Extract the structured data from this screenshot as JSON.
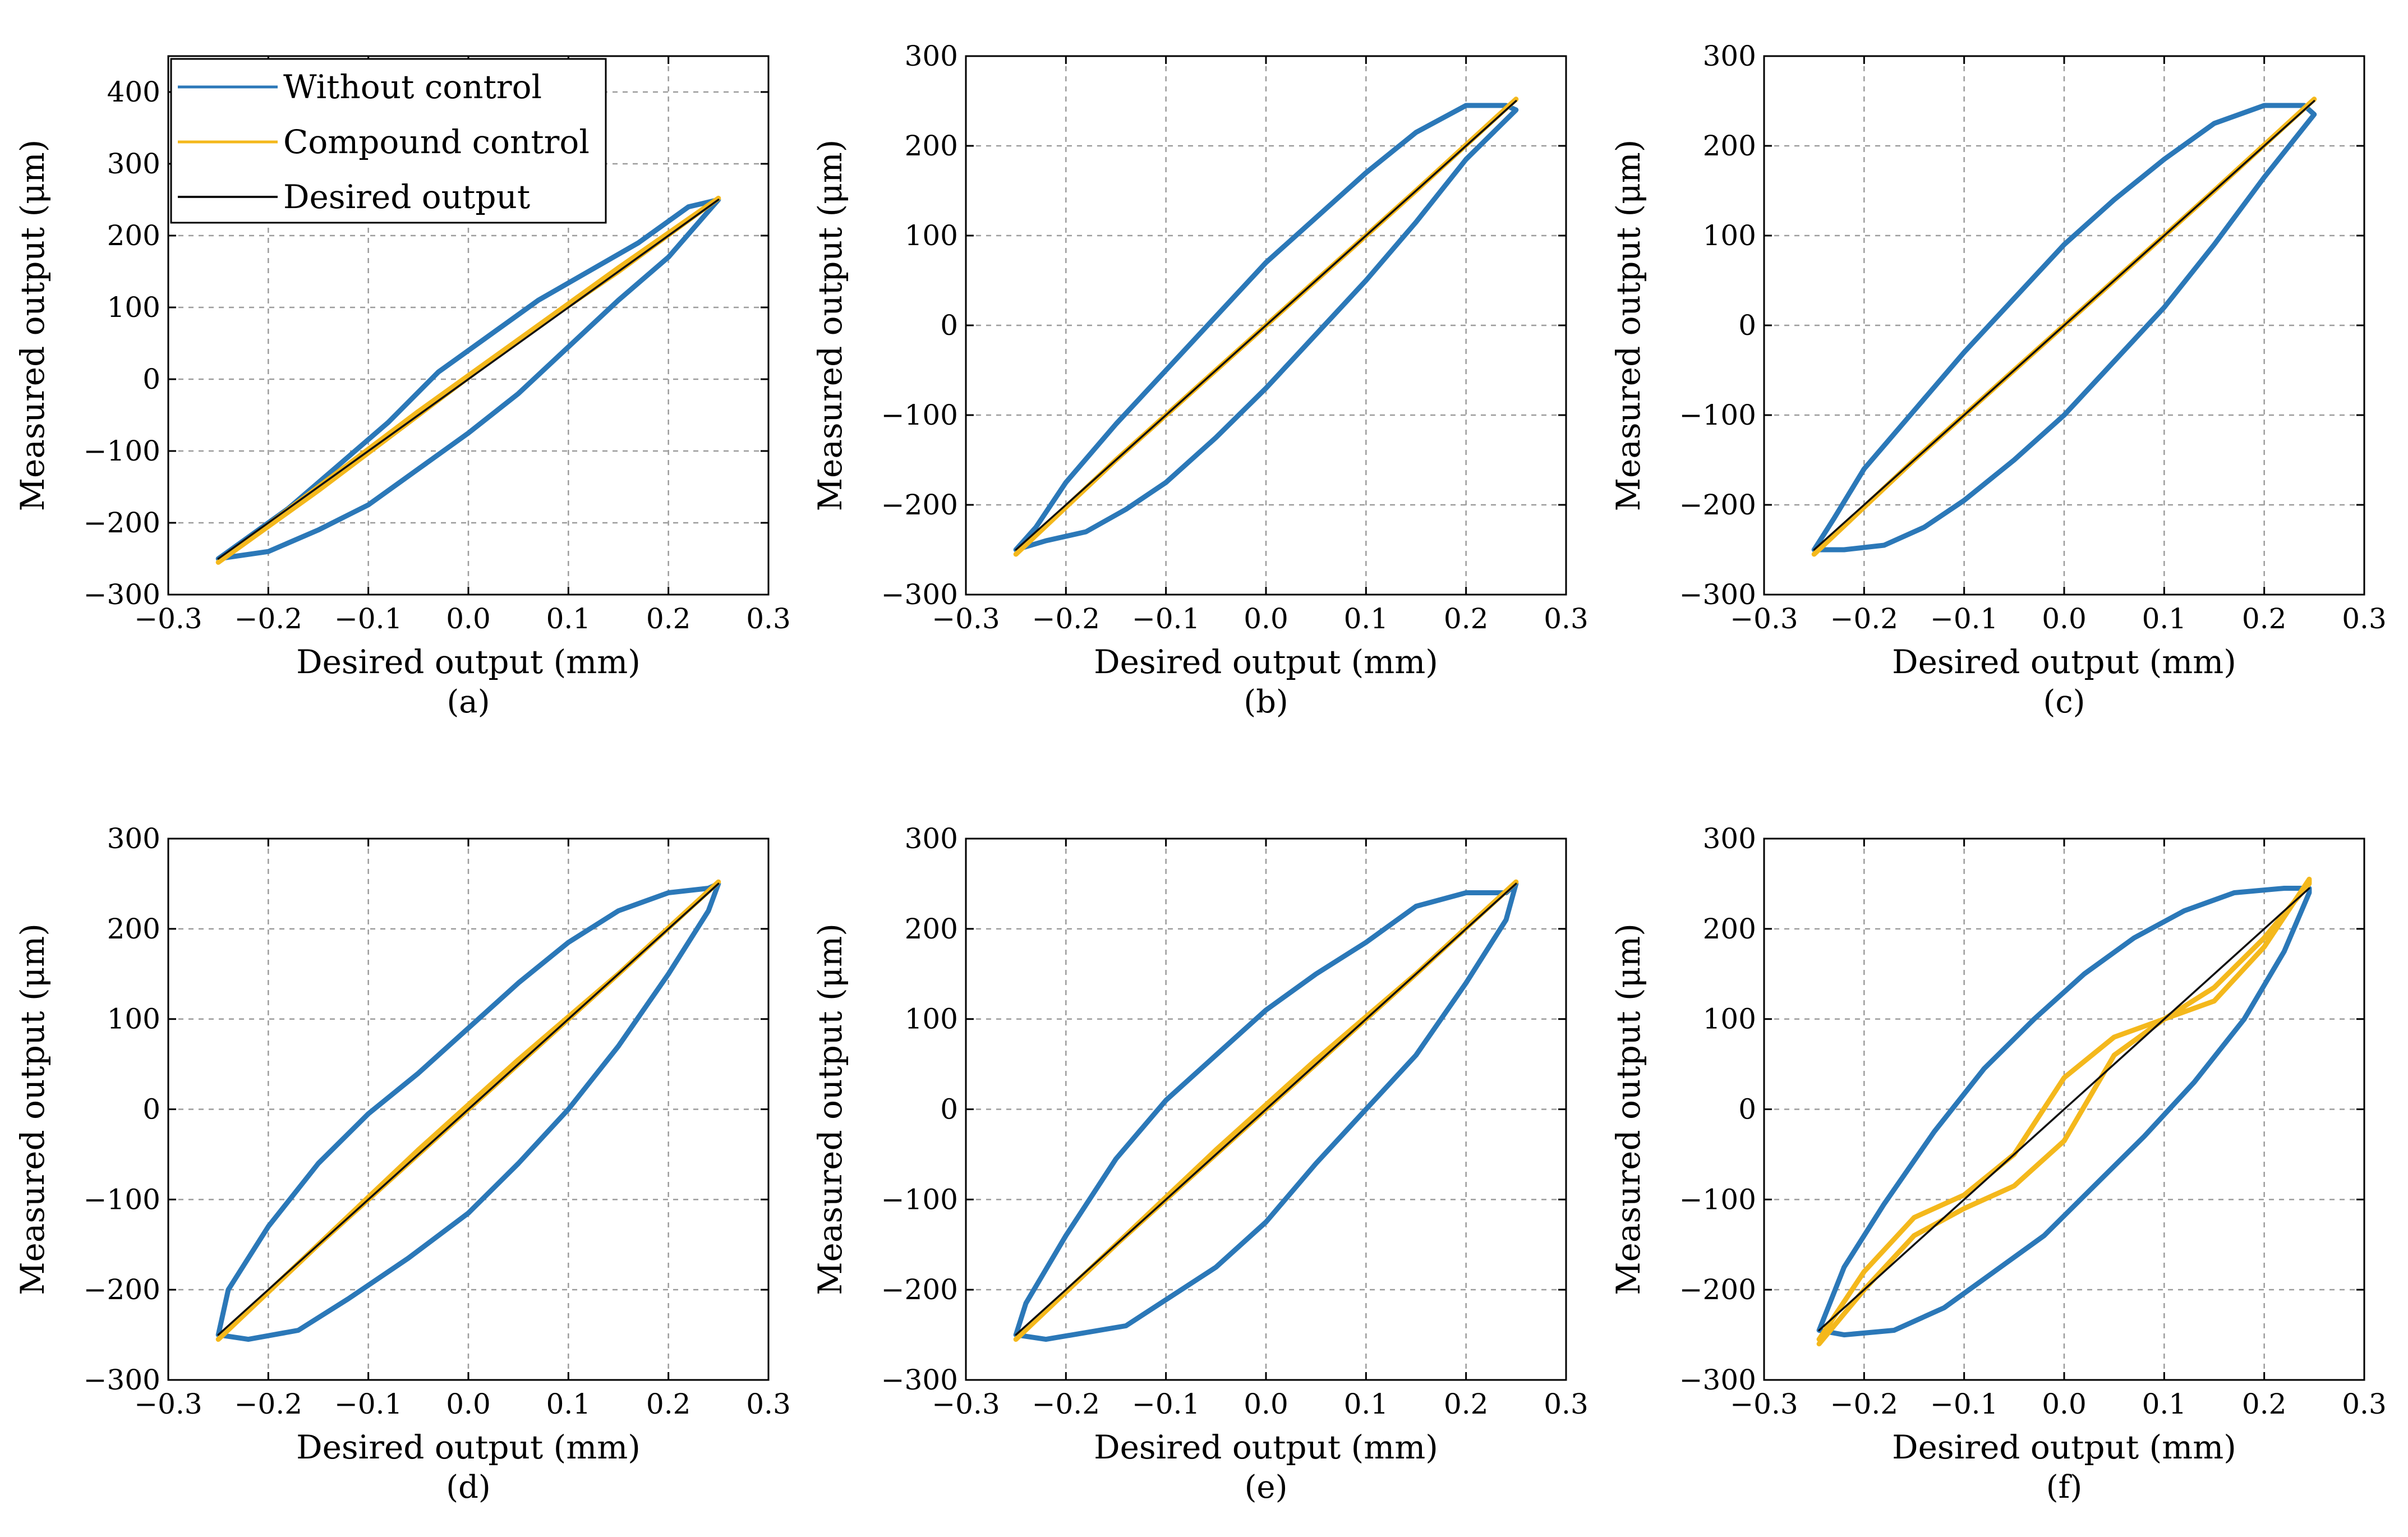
{
  "figure": {
    "colors": {
      "without": "#2b78b8",
      "compound": "#f4b81c",
      "desired": "#111111",
      "grid": "#9c9c9c",
      "axis": "#000000"
    },
    "legend": [
      {
        "key": "without",
        "label": "Without control"
      },
      {
        "key": "compound",
        "label": "Compound control"
      },
      {
        "key": "desired",
        "label": "Desired output"
      }
    ]
  },
  "chart_data": [
    {
      "type": "line",
      "panel": "a",
      "caption": "(a)",
      "xlabel": "Desired output (mm)",
      "ylabel": "Measured output (μm)",
      "xlim": [
        -0.3,
        0.3
      ],
      "ylim": [
        -300,
        450
      ],
      "xticks": [
        -0.3,
        -0.2,
        -0.1,
        0.0,
        0.1,
        0.2,
        0.3
      ],
      "xtick_labels": [
        "−0.3",
        "−0.2",
        "−0.1",
        "0.0",
        "0.1",
        "0.2",
        "0.3"
      ],
      "yticks": [
        -300,
        -200,
        -100,
        0,
        100,
        200,
        300,
        400
      ],
      "ytick_labels": [
        "−300",
        "−200",
        "−100",
        "0",
        "100",
        "200",
        "300",
        "400"
      ],
      "legend": true,
      "grid": true,
      "series": [
        {
          "name": "Without control",
          "key": "without",
          "x": [
            -0.25,
            -0.2,
            -0.15,
            -0.1,
            -0.05,
            0.0,
            0.05,
            0.1,
            0.15,
            0.2,
            0.25,
            0.22,
            0.17,
            0.12,
            0.07,
            0.02,
            -0.03,
            -0.08,
            -0.13,
            -0.18,
            -0.22,
            -0.25
          ],
          "y": [
            -250,
            -240,
            -210,
            -175,
            -125,
            -75,
            -20,
            45,
            110,
            170,
            250,
            240,
            190,
            150,
            110,
            60,
            10,
            -60,
            -120,
            -180,
            -220,
            -250
          ]
        },
        {
          "name": "Compound control",
          "key": "compound",
          "x": [
            -0.25,
            -0.15,
            -0.05,
            0.05,
            0.15,
            0.25,
            0.15,
            0.05,
            -0.05,
            -0.15,
            -0.25
          ],
          "y": [
            -255,
            -150,
            -45,
            55,
            150,
            252,
            155,
            55,
            -50,
            -155,
            -255
          ]
        },
        {
          "name": "Desired output",
          "key": "desired",
          "x": [
            -0.25,
            0.25
          ],
          "y": [
            -250,
            250
          ]
        }
      ]
    },
    {
      "type": "line",
      "panel": "b",
      "caption": "(b)",
      "xlabel": "Desired output (mm)",
      "ylabel": "Measured output (μm)",
      "xlim": [
        -0.3,
        0.3
      ],
      "ylim": [
        -300,
        300
      ],
      "xticks": [
        -0.3,
        -0.2,
        -0.1,
        0.0,
        0.1,
        0.2,
        0.3
      ],
      "xtick_labels": [
        "−0.3",
        "−0.2",
        "−0.1",
        "0.0",
        "0.1",
        "0.2",
        "0.3"
      ],
      "yticks": [
        -300,
        -200,
        -100,
        0,
        100,
        200,
        300
      ],
      "ytick_labels": [
        "−300",
        "−200",
        "−100",
        "0",
        "100",
        "200",
        "300"
      ],
      "legend": false,
      "grid": true,
      "series": [
        {
          "name": "Without control",
          "key": "without",
          "x": [
            -0.25,
            -0.22,
            -0.18,
            -0.14,
            -0.1,
            -0.05,
            0.0,
            0.05,
            0.1,
            0.15,
            0.2,
            0.25,
            0.24,
            0.2,
            0.15,
            0.1,
            0.05,
            0.0,
            -0.05,
            -0.1,
            -0.15,
            -0.2,
            -0.23,
            -0.25
          ],
          "y": [
            -250,
            -240,
            -230,
            -205,
            -175,
            -125,
            -70,
            -10,
            50,
            115,
            185,
            240,
            245,
            245,
            215,
            170,
            120,
            70,
            10,
            -50,
            -110,
            -175,
            -225,
            -250
          ]
        },
        {
          "name": "Compound control",
          "key": "compound",
          "x": [
            -0.25,
            -0.15,
            -0.05,
            0.05,
            0.15,
            0.25,
            0.15,
            0.05,
            -0.05,
            -0.15,
            -0.25
          ],
          "y": [
            -255,
            -150,
            -50,
            50,
            150,
            252,
            150,
            50,
            -50,
            -150,
            -255
          ]
        },
        {
          "name": "Desired output",
          "key": "desired",
          "x": [
            -0.25,
            0.25
          ],
          "y": [
            -250,
            250
          ]
        }
      ]
    },
    {
      "type": "line",
      "panel": "c",
      "caption": "(c)",
      "xlabel": "Desired output (mm)",
      "ylabel": "Measured output (μm)",
      "xlim": [
        -0.3,
        0.3
      ],
      "ylim": [
        -300,
        300
      ],
      "xticks": [
        -0.3,
        -0.2,
        -0.1,
        0.0,
        0.1,
        0.2,
        0.3
      ],
      "xtick_labels": [
        "−0.3",
        "−0.2",
        "−0.1",
        "0.0",
        "0.1",
        "0.2",
        "0.3"
      ],
      "yticks": [
        -300,
        -200,
        -100,
        0,
        100,
        200,
        300
      ],
      "ytick_labels": [
        "−300",
        "−200",
        "−100",
        "0",
        "100",
        "200",
        "300"
      ],
      "legend": false,
      "grid": true,
      "series": [
        {
          "name": "Without control",
          "key": "without",
          "x": [
            -0.25,
            -0.22,
            -0.18,
            -0.14,
            -0.1,
            -0.05,
            0.0,
            0.05,
            0.1,
            0.15,
            0.2,
            0.25,
            0.24,
            0.2,
            0.15,
            0.1,
            0.05,
            0.0,
            -0.05,
            -0.1,
            -0.15,
            -0.2,
            -0.23,
            -0.25
          ],
          "y": [
            -250,
            -250,
            -245,
            -225,
            -195,
            -150,
            -100,
            -40,
            20,
            90,
            165,
            235,
            245,
            245,
            225,
            185,
            140,
            90,
            30,
            -30,
            -95,
            -160,
            -215,
            -250
          ]
        },
        {
          "name": "Compound control",
          "key": "compound",
          "x": [
            -0.25,
            -0.15,
            -0.05,
            0.05,
            0.15,
            0.25,
            0.15,
            0.05,
            -0.05,
            -0.15,
            -0.25
          ],
          "y": [
            -255,
            -150,
            -50,
            50,
            150,
            252,
            150,
            50,
            -50,
            -150,
            -255
          ]
        },
        {
          "name": "Desired output",
          "key": "desired",
          "x": [
            -0.25,
            0.25
          ],
          "y": [
            -250,
            250
          ]
        }
      ]
    },
    {
      "type": "line",
      "panel": "d",
      "caption": "(d)",
      "xlabel": "Desired output (mm)",
      "ylabel": "Measured output (μm)",
      "xlim": [
        -0.3,
        0.3
      ],
      "ylim": [
        -300,
        300
      ],
      "xticks": [
        -0.3,
        -0.2,
        -0.1,
        0.0,
        0.1,
        0.2,
        0.3
      ],
      "xtick_labels": [
        "−0.3",
        "−0.2",
        "−0.1",
        "0.0",
        "0.1",
        "0.2",
        "0.3"
      ],
      "yticks": [
        -300,
        -200,
        -100,
        0,
        100,
        200,
        300
      ],
      "ytick_labels": [
        "−300",
        "−200",
        "−100",
        "0",
        "100",
        "200",
        "300"
      ],
      "legend": false,
      "grid": true,
      "series": [
        {
          "name": "Without control",
          "key": "without",
          "x": [
            -0.25,
            -0.22,
            -0.17,
            -0.12,
            -0.06,
            0.0,
            0.05,
            0.1,
            0.15,
            0.2,
            0.24,
            0.25,
            0.24,
            0.2,
            0.15,
            0.1,
            0.05,
            0.0,
            -0.05,
            -0.1,
            -0.15,
            -0.2,
            -0.24,
            -0.25
          ],
          "y": [
            -250,
            -255,
            -245,
            -210,
            -165,
            -115,
            -60,
            0,
            70,
            150,
            220,
            250,
            245,
            240,
            220,
            185,
            140,
            90,
            40,
            -5,
            -60,
            -130,
            -200,
            -250
          ]
        },
        {
          "name": "Compound control",
          "key": "compound",
          "x": [
            -0.25,
            -0.15,
            -0.05,
            0.05,
            0.15,
            0.25,
            0.15,
            0.05,
            -0.05,
            -0.15,
            -0.25
          ],
          "y": [
            -255,
            -150,
            -45,
            55,
            150,
            252,
            150,
            50,
            -50,
            -150,
            -255
          ]
        },
        {
          "name": "Desired output",
          "key": "desired",
          "x": [
            -0.25,
            0.25
          ],
          "y": [
            -250,
            250
          ]
        }
      ]
    },
    {
      "type": "line",
      "panel": "e",
      "caption": "(e)",
      "xlabel": "Desired output (mm)",
      "ylabel": "Measured output (μm)",
      "xlim": [
        -0.3,
        0.3
      ],
      "ylim": [
        -300,
        300
      ],
      "xticks": [
        -0.3,
        -0.2,
        -0.1,
        0.0,
        0.1,
        0.2,
        0.3
      ],
      "xtick_labels": [
        "−0.3",
        "−0.2",
        "−0.1",
        "0.0",
        "0.1",
        "0.2",
        "0.3"
      ],
      "yticks": [
        -300,
        -200,
        -100,
        0,
        100,
        200,
        300
      ],
      "ytick_labels": [
        "−300",
        "−200",
        "−100",
        "0",
        "100",
        "200",
        "300"
      ],
      "legend": false,
      "grid": true,
      "series": [
        {
          "name": "Without control",
          "key": "without",
          "x": [
            -0.25,
            -0.22,
            -0.14,
            -0.05,
            0.0,
            0.05,
            0.1,
            0.15,
            0.2,
            0.24,
            0.25,
            0.24,
            0.2,
            0.15,
            0.1,
            0.05,
            0.0,
            -0.05,
            -0.1,
            -0.15,
            -0.2,
            -0.24,
            -0.25
          ],
          "y": [
            -250,
            -255,
            -240,
            -175,
            -125,
            -60,
            0,
            60,
            140,
            210,
            250,
            240,
            240,
            225,
            185,
            150,
            110,
            60,
            10,
            -55,
            -140,
            -215,
            -250
          ]
        },
        {
          "name": "Compound control",
          "key": "compound",
          "x": [
            -0.25,
            -0.15,
            -0.05,
            0.05,
            0.15,
            0.25,
            0.15,
            0.05,
            -0.05,
            -0.15,
            -0.25
          ],
          "y": [
            -255,
            -150,
            -45,
            55,
            150,
            252,
            150,
            50,
            -50,
            -150,
            -255
          ]
        },
        {
          "name": "Desired output",
          "key": "desired",
          "x": [
            -0.25,
            0.25
          ],
          "y": [
            -250,
            250
          ]
        }
      ]
    },
    {
      "type": "line",
      "panel": "f",
      "caption": "(f)",
      "xlabel": "Desired output (mm)",
      "ylabel": "Measured output (μm)",
      "xlim": [
        -0.3,
        0.3
      ],
      "ylim": [
        -300,
        300
      ],
      "xticks": [
        -0.3,
        -0.2,
        -0.1,
        0.0,
        0.1,
        0.2,
        0.3
      ],
      "xtick_labels": [
        "−0.3",
        "−0.2",
        "−0.1",
        "0.0",
        "0.1",
        "0.2",
        "0.3"
      ],
      "yticks": [
        -300,
        -200,
        -100,
        0,
        100,
        200,
        300
      ],
      "ytick_labels": [
        "−300",
        "−200",
        "−100",
        "0",
        "100",
        "200",
        "300"
      ],
      "legend": false,
      "grid": true,
      "series": [
        {
          "name": "Without control",
          "key": "without",
          "x": [
            -0.245,
            -0.22,
            -0.17,
            -0.12,
            -0.07,
            -0.02,
            0.03,
            0.08,
            0.13,
            0.18,
            0.22,
            0.245,
            0.245,
            0.22,
            0.17,
            0.12,
            0.07,
            0.02,
            -0.03,
            -0.08,
            -0.13,
            -0.18,
            -0.22,
            -0.245
          ],
          "y": [
            -245,
            -250,
            -245,
            -220,
            -180,
            -140,
            -85,
            -30,
            30,
            100,
            175,
            240,
            245,
            245,
            240,
            220,
            190,
            150,
            100,
            45,
            -25,
            -105,
            -175,
            -245
          ]
        },
        {
          "name": "Compound control",
          "key": "compound",
          "x": [
            -0.245,
            -0.2,
            -0.15,
            -0.1,
            -0.05,
            0.0,
            0.05,
            0.1,
            0.15,
            0.2,
            0.245,
            0.245,
            0.2,
            0.15,
            0.1,
            0.05,
            0.0,
            -0.05,
            -0.1,
            -0.15,
            -0.2,
            -0.245
          ],
          "y": [
            -260,
            -200,
            -140,
            -110,
            -85,
            -35,
            60,
            100,
            120,
            180,
            255,
            250,
            190,
            135,
            100,
            80,
            35,
            -50,
            -95,
            -120,
            -180,
            -255
          ]
        },
        {
          "name": "Desired output",
          "key": "desired",
          "x": [
            -0.245,
            0.245
          ],
          "y": [
            -245,
            245
          ]
        }
      ]
    }
  ]
}
